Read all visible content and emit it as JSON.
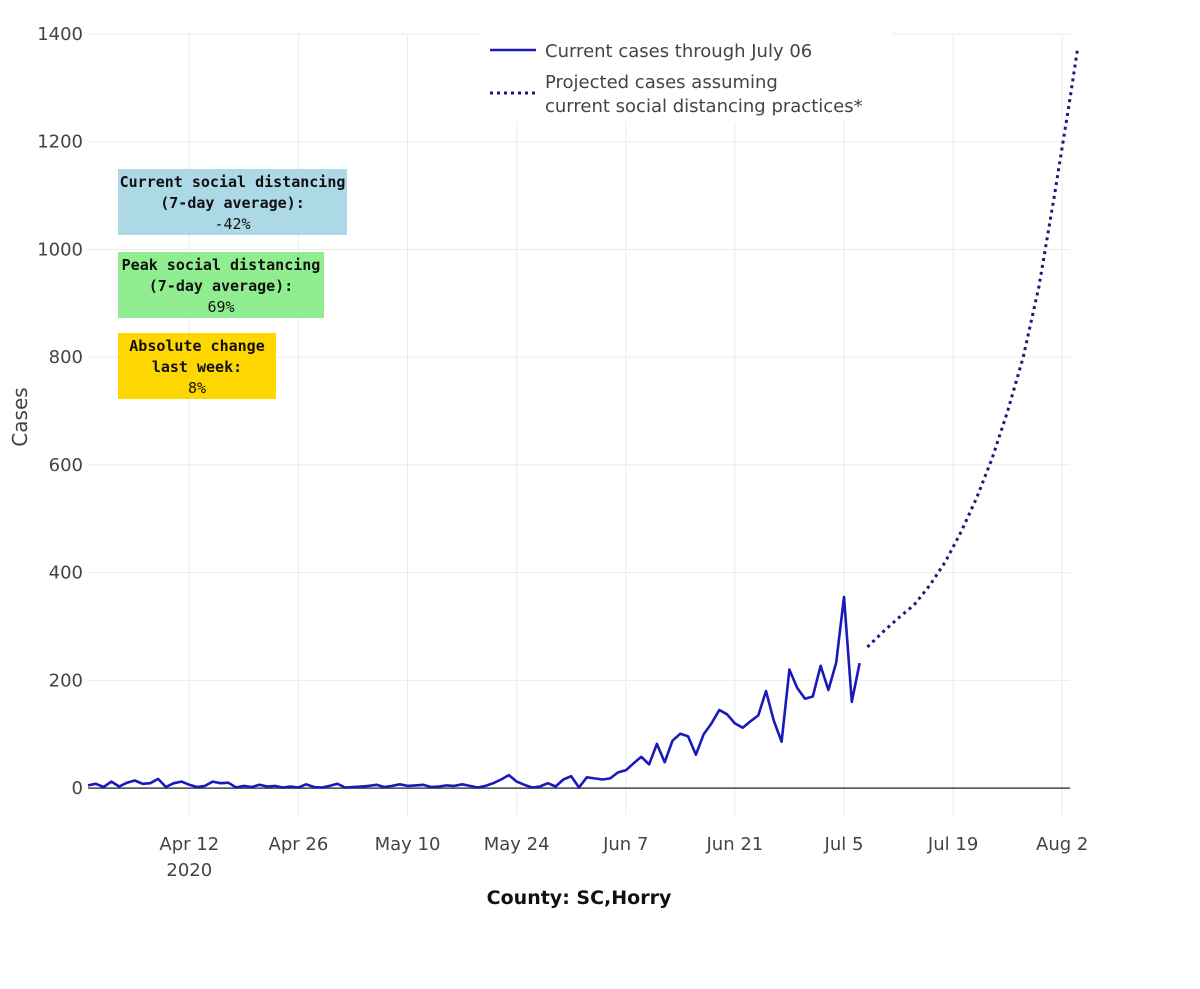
{
  "chart_data": {
    "type": "line",
    "ylabel": "Cases",
    "caption": "County: SC,Horry",
    "ylim": [
      -50,
      1400
    ],
    "yticks": [
      0,
      200,
      400,
      600,
      800,
      1000,
      1200,
      1400
    ],
    "xlim": [
      "2020-03-30",
      "2020-08-03"
    ],
    "xticks": [
      {
        "date": "2020-04-12",
        "label": "Apr 12",
        "sublabel": "2020"
      },
      {
        "date": "2020-04-26",
        "label": "Apr 26"
      },
      {
        "date": "2020-05-10",
        "label": "May 10"
      },
      {
        "date": "2020-05-24",
        "label": "May 24"
      },
      {
        "date": "2020-06-07",
        "label": "Jun 7"
      },
      {
        "date": "2020-06-21",
        "label": "Jun 21"
      },
      {
        "date": "2020-07-05",
        "label": "Jul 5"
      },
      {
        "date": "2020-07-19",
        "label": "Jul 19"
      },
      {
        "date": "2020-08-02",
        "label": "Aug 2"
      }
    ],
    "grid": true,
    "legend": {
      "position": "top",
      "entries": [
        {
          "label": "Current cases through July 06",
          "style": "solid"
        },
        {
          "label": "Projected cases assuming",
          "label2": "current social distancing practices*",
          "style": "dotted"
        }
      ]
    },
    "colors": {
      "current": "#1a1ab8",
      "projected": "#1a1a7a",
      "zero_line": "#444444",
      "grid": "#ebebeb"
    },
    "series": [
      {
        "name": "Current cases through July 06",
        "style": "solid",
        "points": [
          [
            "2020-03-30",
            5
          ],
          [
            "2020-03-31",
            8
          ],
          [
            "2020-04-01",
            2
          ],
          [
            "2020-04-02",
            12
          ],
          [
            "2020-04-03",
            3
          ],
          [
            "2020-04-04",
            10
          ],
          [
            "2020-04-05",
            14
          ],
          [
            "2020-04-06",
            8
          ],
          [
            "2020-04-07",
            9
          ],
          [
            "2020-04-08",
            17
          ],
          [
            "2020-04-09",
            2
          ],
          [
            "2020-04-10",
            9
          ],
          [
            "2020-04-11",
            12
          ],
          [
            "2020-04-12",
            6
          ],
          [
            "2020-04-13",
            2
          ],
          [
            "2020-04-14",
            4
          ],
          [
            "2020-04-15",
            12
          ],
          [
            "2020-04-16",
            9
          ],
          [
            "2020-04-17",
            10
          ],
          [
            "2020-04-18",
            1
          ],
          [
            "2020-04-19",
            4
          ],
          [
            "2020-04-20",
            2
          ],
          [
            "2020-04-21",
            6
          ],
          [
            "2020-04-22",
            3
          ],
          [
            "2020-04-23",
            4
          ],
          [
            "2020-04-24",
            1
          ],
          [
            "2020-04-25",
            3
          ],
          [
            "2020-04-26",
            1
          ],
          [
            "2020-04-27",
            7
          ],
          [
            "2020-04-28",
            2
          ],
          [
            "2020-04-29",
            1
          ],
          [
            "2020-04-30",
            4
          ],
          [
            "2020-05-01",
            8
          ],
          [
            "2020-05-02",
            1
          ],
          [
            "2020-05-03",
            2
          ],
          [
            "2020-05-04",
            3
          ],
          [
            "2020-05-05",
            4
          ],
          [
            "2020-05-06",
            6
          ],
          [
            "2020-05-07",
            2
          ],
          [
            "2020-05-08",
            4
          ],
          [
            "2020-05-09",
            7
          ],
          [
            "2020-05-10",
            4
          ],
          [
            "2020-05-11",
            5
          ],
          [
            "2020-05-12",
            6
          ],
          [
            "2020-05-13",
            2
          ],
          [
            "2020-05-14",
            3
          ],
          [
            "2020-05-15",
            5
          ],
          [
            "2020-05-16",
            4
          ],
          [
            "2020-05-17",
            7
          ],
          [
            "2020-05-18",
            4
          ],
          [
            "2020-05-19",
            1
          ],
          [
            "2020-05-20",
            4
          ],
          [
            "2020-05-21",
            9
          ],
          [
            "2020-05-22",
            16
          ],
          [
            "2020-05-23",
            24
          ],
          [
            "2020-05-24",
            12
          ],
          [
            "2020-05-25",
            6
          ],
          [
            "2020-05-26",
            1
          ],
          [
            "2020-05-27",
            3
          ],
          [
            "2020-05-28",
            9
          ],
          [
            "2020-05-29",
            3
          ],
          [
            "2020-05-30",
            16
          ],
          [
            "2020-05-31",
            22
          ],
          [
            "2020-06-01",
            1
          ],
          [
            "2020-06-02",
            20
          ],
          [
            "2020-06-03",
            18
          ],
          [
            "2020-06-04",
            16
          ],
          [
            "2020-06-05",
            18
          ],
          [
            "2020-06-06",
            29
          ],
          [
            "2020-06-07",
            33
          ],
          [
            "2020-06-08",
            46
          ],
          [
            "2020-06-09",
            58
          ],
          [
            "2020-06-10",
            44
          ],
          [
            "2020-06-11",
            82
          ],
          [
            "2020-06-12",
            48
          ],
          [
            "2020-06-13",
            88
          ],
          [
            "2020-06-14",
            101
          ],
          [
            "2020-06-15",
            96
          ],
          [
            "2020-06-16",
            62
          ],
          [
            "2020-06-17",
            100
          ],
          [
            "2020-06-18",
            120
          ],
          [
            "2020-06-19",
            145
          ],
          [
            "2020-06-20",
            137
          ],
          [
            "2020-06-21",
            120
          ],
          [
            "2020-06-22",
            112
          ],
          [
            "2020-06-23",
            124
          ],
          [
            "2020-06-24",
            135
          ],
          [
            "2020-06-25",
            180
          ],
          [
            "2020-06-26",
            125
          ],
          [
            "2020-06-27",
            86
          ],
          [
            "2020-06-28",
            220
          ],
          [
            "2020-06-29",
            186
          ],
          [
            "2020-06-30",
            166
          ],
          [
            "2020-07-01",
            170
          ],
          [
            "2020-07-02",
            227
          ],
          [
            "2020-07-03",
            182
          ],
          [
            "2020-07-04",
            233
          ],
          [
            "2020-07-05",
            355
          ],
          [
            "2020-07-06",
            160
          ],
          [
            "2020-07-07",
            232
          ]
        ]
      },
      {
        "name": "Projected cases assuming current social distancing practices*",
        "style": "dotted",
        "points": [
          [
            "2020-07-08",
            262
          ],
          [
            "2020-07-10",
            290
          ],
          [
            "2020-07-12",
            316
          ],
          [
            "2020-07-14",
            340
          ],
          [
            "2020-07-16",
            376
          ],
          [
            "2020-07-18",
            420
          ],
          [
            "2020-07-20",
            475
          ],
          [
            "2020-07-22",
            538
          ],
          [
            "2020-07-24",
            612
          ],
          [
            "2020-07-26",
            700
          ],
          [
            "2020-07-28",
            800
          ],
          [
            "2020-07-30",
            930
          ],
          [
            "2020-08-01",
            1100
          ],
          [
            "2020-08-03",
            1280
          ],
          [
            "2020-08-04",
            1375
          ]
        ]
      }
    ],
    "annotations": [
      {
        "lines": [
          "Current social distancing",
          "(7-day average):",
          "-42%"
        ],
        "color": "#add8e6"
      },
      {
        "lines": [
          "Peak social distancing",
          "(7-day average):",
          "69%"
        ],
        "color": "#90ee90"
      },
      {
        "lines": [
          "Absolute change",
          "last week:",
          "8%"
        ],
        "color": "#ffd700"
      }
    ]
  }
}
